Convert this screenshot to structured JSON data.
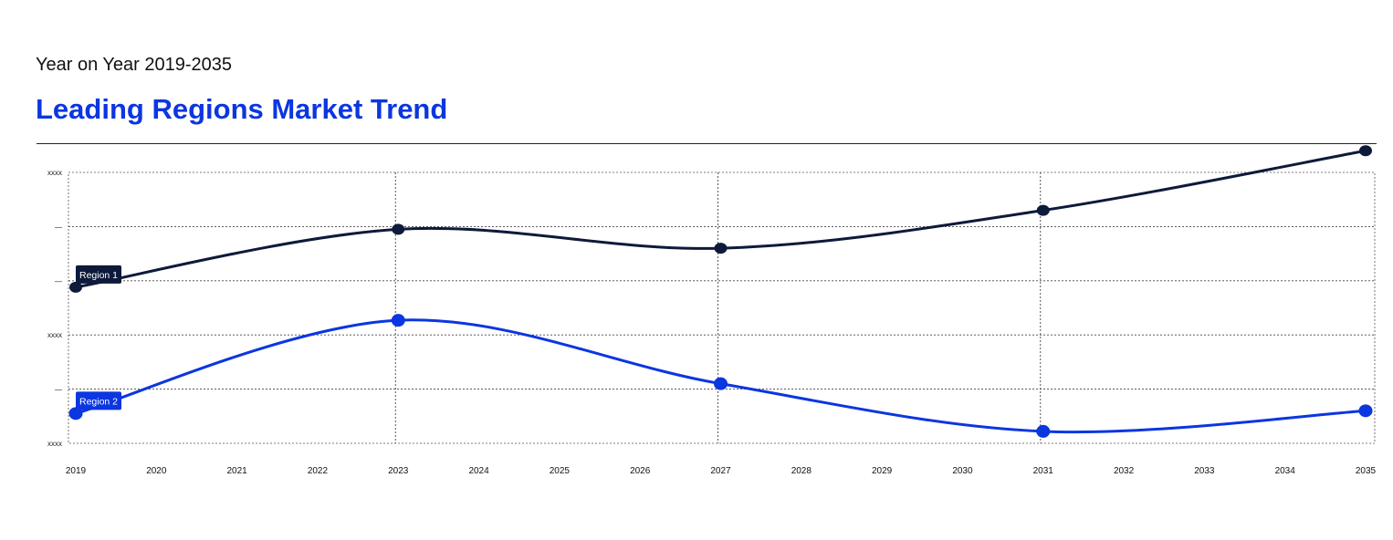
{
  "header": {
    "subtitle": "Year on Year 2019-2035",
    "title": "Leading Regions Market Trend"
  },
  "colors": {
    "accent": "#0b36e0",
    "dark": "#0d1a3a"
  },
  "chart_data": {
    "type": "line",
    "title": "Leading Regions Market Trend",
    "subtitle": "Year on Year 2019-2035",
    "x": [
      "2019",
      "2020",
      "2021",
      "2022",
      "2023",
      "2024",
      "2025",
      "2026",
      "2027",
      "2028",
      "2029",
      "2030",
      "2031",
      "2032",
      "2033",
      "2034",
      "2035"
    ],
    "y_ticks": [
      "xxxx",
      "—",
      "—",
      "xxxx",
      "—",
      "xxxx"
    ],
    "ylim": [
      0,
      5
    ],
    "grid": true,
    "vertical_gridlines_at": [
      "2023",
      "2027",
      "2031"
    ],
    "series": [
      {
        "name": "Region 1",
        "color": "#0d1a3a",
        "points": [
          {
            "x": "2019",
            "y": 2.88
          },
          {
            "x": "2023",
            "y": 3.95
          },
          {
            "x": "2027",
            "y": 3.6
          },
          {
            "x": "2031",
            "y": 4.3
          },
          {
            "x": "2035",
            "y": 5.4
          }
        ]
      },
      {
        "name": "Region 2",
        "color": "#0b36e0",
        "points": [
          {
            "x": "2019",
            "y": 0.55
          },
          {
            "x": "2023",
            "y": 2.27
          },
          {
            "x": "2027",
            "y": 1.1
          },
          {
            "x": "2031",
            "y": 0.22
          },
          {
            "x": "2035",
            "y": 0.6
          }
        ]
      }
    ]
  }
}
